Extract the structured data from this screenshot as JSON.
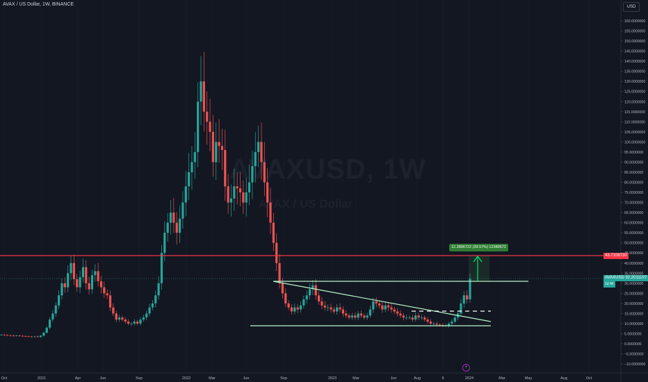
{
  "header": {
    "symbol_title": "AVAX / US Dollar, 1W, BINANCE",
    "currency": "USD"
  },
  "watermark": {
    "title": "AVAXUSD, 1W",
    "subtitle": "AVAX / US Dollar"
  },
  "price_tags": {
    "resistance": "43.7108730",
    "current": "32.2011107",
    "current_symbol": "AVAXUSD",
    "countdown": "1d 4h"
  },
  "measure_label": "12.3896722 (39.57%) 12389672",
  "colors": {
    "background": "#131722",
    "up": "#26a69a",
    "down": "#ef5350",
    "resistance_line": "#f23645",
    "drawing_line": "#b9f6ca",
    "measure": "#2e7d32"
  },
  "chart_data": {
    "type": "candlestick",
    "title": "AVAX / US Dollar, 1W, BINANCE",
    "xlabel": "",
    "ylabel": "",
    "x_ticks": [
      "Oct",
      "2021",
      "Apr",
      "Jun",
      "Sep",
      "2022",
      "Mar",
      "Jun",
      "Sep",
      "2023",
      "Mar",
      "Jun",
      "Aug",
      "9",
      "2024",
      "Mar",
      "May",
      "Aug",
      "Oct"
    ],
    "y_ticks": [
      160,
      155,
      150,
      145,
      140,
      135,
      130,
      125,
      120,
      115,
      110,
      105,
      100,
      95,
      90,
      85,
      80,
      75,
      70,
      65,
      60,
      55,
      50,
      45,
      40,
      35,
      30,
      25,
      20,
      15,
      10,
      5,
      0,
      -5,
      -10
    ],
    "y_tick_labels": [
      "160.0000000",
      "155.0000000",
      "150.0000000",
      "145.0000000",
      "140.0000000",
      "135.0000000",
      "130.0000000",
      "125.0000000",
      "120.0000000",
      "115.0000000",
      "110.0000000",
      "105.0000000",
      "100.0000000",
      "95.0000000",
      "90.0000000",
      "85.0000000",
      "80.0000000",
      "75.0000000",
      "70.0000000",
      "65.0000000",
      "60.0000000",
      "55.0000000",
      "50.0000000",
      "45.0000000",
      "40.0000000",
      "35.0000000",
      "30.0000000",
      "25.0000000",
      "20.0000000",
      "15.0000000",
      "10.0000000",
      "5.0000000",
      "0.0000000",
      "−5.0000000",
      "−10.0000000"
    ],
    "ylim": [
      -12,
      165
    ],
    "grid": false,
    "legend": "none",
    "series": [
      {
        "weekly_closes": [
          4.5,
          4.3,
          4.2,
          4.1,
          4.0,
          4.1,
          3.9,
          3.8,
          3.7,
          3.6,
          3.5,
          3.6,
          3.4,
          4.0,
          5.5,
          8,
          12,
          15,
          19,
          24,
          30,
          28,
          35,
          40,
          32,
          28,
          33,
          38,
          30,
          27,
          34,
          36,
          31,
          28,
          25,
          24,
          18,
          15,
          12,
          13,
          12,
          11,
          10,
          10,
          11,
          10,
          12,
          13,
          15,
          18,
          20,
          24,
          30,
          45,
          55,
          60,
          65,
          60,
          55,
          62,
          70,
          78,
          85,
          90,
          95,
          120,
          130,
          115,
          110,
          105,
          90,
          100,
          98,
          96,
          78,
          70,
          72,
          78,
          77,
          75,
          70,
          75,
          80,
          88,
          95,
          100,
          90,
          80,
          70,
          60,
          50,
          40,
          30,
          25,
          20,
          18,
          16,
          18,
          17,
          19,
          22,
          24,
          27,
          29,
          24,
          21,
          19,
          18,
          18,
          17,
          16,
          18,
          17,
          15,
          14,
          13,
          14,
          13,
          15,
          14,
          13,
          14,
          17,
          21,
          20,
          19,
          17,
          19,
          18,
          17,
          16,
          15,
          14,
          13,
          13,
          13,
          12,
          14,
          13,
          13,
          12,
          11,
          10,
          10,
          9.5,
          9.3,
          9,
          9,
          10,
          11,
          13,
          15,
          20,
          24,
          22,
          32.2
        ]
      }
    ],
    "horizontal_lines": [
      43.71
    ],
    "current_price": 32.2011107
  }
}
